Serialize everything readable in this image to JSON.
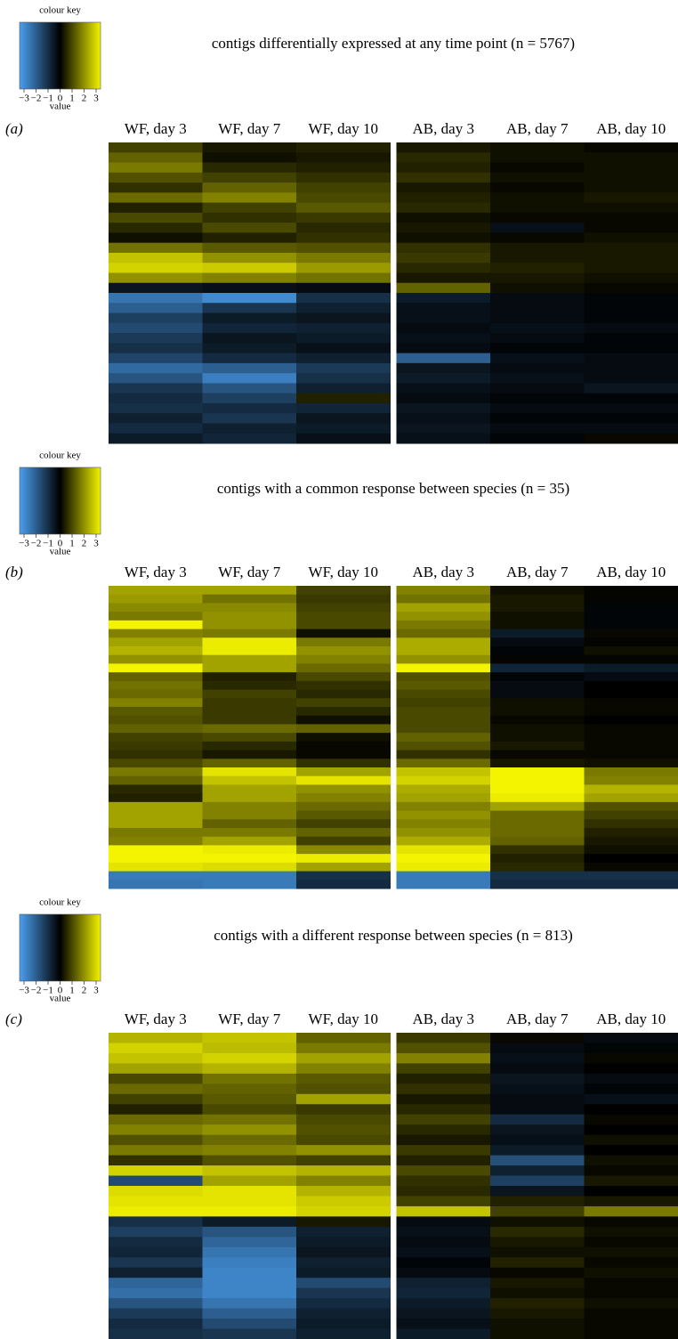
{
  "chart_data": [
    {
      "type": "heatmap",
      "title": "contigs differentially expressed at any time point (n = 5767)",
      "panel_label": "(a)",
      "colorbar_title": "colour key",
      "colorbar_label": "value",
      "zlim": [
        -3,
        3
      ],
      "zticks": [
        {
          "value": -3,
          "label": "−3"
        },
        {
          "value": -2,
          "label": "−2"
        },
        {
          "value": -1,
          "label": "−1"
        },
        0,
        1,
        2,
        3
      ],
      "colors": [
        "#4a9ff0",
        "#000000",
        "#f4f400"
      ],
      "columns": [
        "WF, day 3",
        "WF, day 7",
        "WF, day 10",
        "AB, day 3",
        "AB, day 7",
        "AB, day 10"
      ],
      "values": [
        [
          0.8,
          0.3,
          0.4,
          0.3,
          0.2,
          0.1
        ],
        [
          1.2,
          0.2,
          0.3,
          0.5,
          0.2,
          0.2
        ],
        [
          1.5,
          0.5,
          0.4,
          0.4,
          0.1,
          0.2
        ],
        [
          1.0,
          0.8,
          0.6,
          0.6,
          0.2,
          0.2
        ],
        [
          0.6,
          1.2,
          0.8,
          0.3,
          0.1,
          0.2
        ],
        [
          1.3,
          1.6,
          0.9,
          0.4,
          0.2,
          0.3
        ],
        [
          0.4,
          0.8,
          1.1,
          0.5,
          0.2,
          0.2
        ],
        [
          0.9,
          0.6,
          0.7,
          0.2,
          0.1,
          0.1
        ],
        [
          0.5,
          0.9,
          0.5,
          0.3,
          -0.3,
          0.1
        ],
        [
          0.2,
          0.4,
          0.6,
          0.2,
          0.1,
          0.2
        ],
        [
          1.4,
          1.1,
          1.0,
          0.6,
          0.3,
          0.3
        ],
        [
          2.4,
          1.8,
          1.5,
          0.7,
          0.3,
          0.3
        ],
        [
          2.6,
          2.5,
          1.9,
          0.5,
          0.4,
          0.3
        ],
        [
          1.8,
          1.6,
          1.4,
          0.3,
          0.3,
          0.2
        ],
        [
          -0.4,
          -0.3,
          -0.2,
          1.2,
          0.2,
          0.1
        ],
        [
          -2.2,
          -2.6,
          -0.9,
          -0.5,
          -0.2,
          -0.1
        ],
        [
          -1.8,
          -1.0,
          -0.6,
          -0.3,
          -0.2,
          -0.1
        ],
        [
          -1.2,
          -0.5,
          -0.4,
          -0.3,
          -0.2,
          -0.1
        ],
        [
          -1.4,
          -0.7,
          -0.6,
          -0.2,
          -0.3,
          -0.2
        ],
        [
          -1.1,
          -0.4,
          -0.5,
          -0.3,
          -0.2,
          -0.1
        ],
        [
          -0.9,
          -0.5,
          -0.3,
          -0.2,
          -0.1,
          -0.1
        ],
        [
          -1.3,
          -0.8,
          -0.6,
          -1.8,
          -0.3,
          -0.2
        ],
        [
          -2.0,
          -1.8,
          -1.1,
          -0.4,
          -0.2,
          -0.2
        ],
        [
          -1.6,
          -2.4,
          -0.9,
          -0.5,
          -0.3,
          -0.2
        ],
        [
          -1.0,
          -1.6,
          -0.6,
          -0.3,
          -0.2,
          -0.4
        ],
        [
          -0.8,
          -1.2,
          0.4,
          -0.2,
          -0.1,
          -0.1
        ],
        [
          -0.9,
          -0.8,
          -0.7,
          -0.4,
          -0.2,
          -0.2
        ],
        [
          -0.6,
          -1.0,
          -0.4,
          -0.3,
          -0.1,
          -0.1
        ],
        [
          -0.8,
          -0.6,
          -0.5,
          -0.4,
          -0.2,
          -0.2
        ],
        [
          -0.5,
          -0.7,
          -0.3,
          -0.3,
          -0.1,
          0.1
        ]
      ]
    },
    {
      "type": "heatmap",
      "title": "contigs with a common response between species (n = 35)",
      "panel_label": "(b)",
      "colorbar_title": "colour key",
      "colorbar_label": "value",
      "zlim": [
        -3,
        3
      ],
      "zticks": [
        {
          "value": -3,
          "label": "−3"
        },
        {
          "value": -2,
          "label": "−2"
        },
        {
          "value": -1,
          "label": "−1"
        },
        0,
        1,
        2,
        3
      ],
      "colors": [
        "#4a9ff0",
        "#000000",
        "#f4f400"
      ],
      "columns": [
        "WF, day 3",
        "WF, day 7",
        "WF, day 10",
        "AB, day 3",
        "AB, day 7",
        "AB, day 10"
      ],
      "values": [
        [
          2.0,
          2.0,
          0.8,
          1.6,
          0.2,
          0.05
        ],
        [
          1.9,
          1.4,
          0.7,
          1.4,
          0.3,
          0.05
        ],
        [
          1.7,
          1.7,
          0.8,
          2.0,
          0.3,
          -0.1
        ],
        [
          1.5,
          1.8,
          0.9,
          1.8,
          0.2,
          -0.1
        ],
        [
          3.0,
          1.8,
          0.9,
          1.5,
          0.2,
          -0.1
        ],
        [
          1.6,
          1.5,
          0.2,
          1.3,
          -0.5,
          0.1
        ],
        [
          2.0,
          2.9,
          1.5,
          2.1,
          -0.2,
          0.05
        ],
        [
          2.2,
          2.9,
          1.8,
          2.1,
          -0.1,
          0.2
        ],
        [
          1.8,
          2.0,
          1.6,
          1.8,
          0.05,
          0.05
        ],
        [
          3.0,
          2.0,
          1.3,
          3.0,
          -0.7,
          -0.5
        ],
        [
          1.2,
          0.4,
          0.9,
          1.0,
          -0.1,
          -0.2
        ],
        [
          1.4,
          0.5,
          0.6,
          1.1,
          -0.2,
          0.0
        ],
        [
          1.3,
          0.8,
          0.5,
          0.9,
          -0.2,
          0.0
        ],
        [
          1.6,
          0.7,
          0.8,
          0.8,
          0.2,
          0.1
        ],
        [
          1.1,
          0.7,
          0.5,
          0.9,
          0.2,
          0.1
        ],
        [
          1.0,
          0.7,
          0.2,
          0.9,
          0.1,
          0.0
        ],
        [
          1.2,
          1.3,
          1.2,
          0.9,
          0.2,
          0.1
        ],
        [
          0.8,
          0.9,
          0.2,
          1.2,
          0.2,
          0.1
        ],
        [
          0.7,
          0.5,
          0.1,
          1.0,
          0.3,
          0.1
        ],
        [
          0.6,
          0.3,
          0.1,
          0.6,
          0.1,
          0.1
        ],
        [
          0.9,
          1.2,
          0.6,
          1.3,
          0.3,
          0.2
        ],
        [
          1.5,
          2.8,
          2.0,
          2.4,
          3.0,
          1.5
        ],
        [
          1.2,
          2.4,
          2.8,
          2.6,
          3.0,
          1.6
        ],
        [
          0.5,
          2.0,
          1.8,
          2.1,
          3.0,
          2.2
        ],
        [
          0.4,
          2.0,
          1.6,
          2.0,
          2.9,
          2.0
        ],
        [
          2.0,
          1.6,
          1.3,
          1.6,
          2.0,
          1.0
        ],
        [
          2.0,
          1.6,
          1.1,
          1.8,
          1.3,
          0.8
        ],
        [
          2.0,
          1.2,
          0.8,
          1.6,
          1.3,
          0.6
        ],
        [
          1.5,
          1.5,
          1.2,
          1.8,
          1.3,
          0.4
        ],
        [
          1.6,
          2.0,
          0.8,
          2.1,
          1.2,
          0.3
        ],
        [
          3.0,
          2.9,
          1.7,
          2.8,
          0.6,
          0.2
        ],
        [
          3.0,
          3.0,
          2.9,
          3.0,
          0.4,
          0.0
        ],
        [
          2.8,
          2.7,
          2.0,
          2.9,
          0.5,
          0.1
        ],
        [
          -2.3,
          -2.3,
          -0.9,
          -2.3,
          -0.9,
          -0.9
        ],
        [
          -2.2,
          -2.3,
          -0.8,
          -2.3,
          -0.8,
          -0.8
        ]
      ]
    },
    {
      "type": "heatmap",
      "title": "contigs with a different response between species (n = 813)",
      "panel_label": "(c)",
      "colorbar_title": "colour key",
      "colorbar_label": "value",
      "zlim": [
        -3,
        3
      ],
      "zticks": [
        {
          "value": -3,
          "label": "−3"
        },
        {
          "value": -2,
          "label": "−2"
        },
        {
          "value": -1,
          "label": "−1"
        },
        0,
        1,
        2,
        3
      ],
      "colors": [
        "#4a9ff0",
        "#000000",
        "#f4f400"
      ],
      "columns": [
        "WF, day 3",
        "WF, day 7",
        "WF, day 10",
        "AB, day 3",
        "AB, day 7",
        "AB, day 10"
      ],
      "values": [
        [
          2.2,
          2.4,
          1.2,
          0.7,
          0.1,
          -0.2
        ],
        [
          2.6,
          2.3,
          1.5,
          1.0,
          -0.2,
          -0.1
        ],
        [
          2.4,
          2.6,
          2.0,
          1.6,
          -0.3,
          0.1
        ],
        [
          2.0,
          2.2,
          1.6,
          0.8,
          -0.2,
          0.0
        ],
        [
          0.9,
          1.4,
          1.1,
          0.4,
          -0.4,
          -0.2
        ],
        [
          1.3,
          1.2,
          1.0,
          0.6,
          -0.3,
          -0.1
        ],
        [
          0.8,
          1.1,
          2.0,
          0.3,
          -0.2,
          -0.3
        ],
        [
          0.4,
          0.9,
          0.7,
          0.5,
          -0.2,
          0.0
        ],
        [
          1.3,
          1.4,
          0.9,
          0.8,
          -0.8,
          0.1
        ],
        [
          1.6,
          1.8,
          1.0,
          0.5,
          -0.4,
          0.0
        ],
        [
          1.0,
          1.3,
          0.9,
          0.3,
          -0.3,
          0.2
        ],
        [
          1.5,
          1.6,
          1.8,
          0.7,
          -0.5,
          0.0
        ],
        [
          0.6,
          1.0,
          0.8,
          0.4,
          -1.5,
          0.2
        ],
        [
          2.6,
          2.4,
          2.2,
          0.9,
          -0.6,
          0.1
        ],
        [
          -1.4,
          2.0,
          1.6,
          0.6,
          -1.2,
          0.3
        ],
        [
          2.7,
          2.8,
          2.2,
          0.5,
          -0.4,
          0.0
        ],
        [
          2.8,
          2.8,
          2.5,
          0.8,
          0.4,
          0.3
        ],
        [
          2.9,
          2.9,
          2.6,
          2.4,
          0.8,
          1.5
        ],
        [
          -0.9,
          -0.5,
          0.3,
          -0.2,
          0.2,
          0.1
        ],
        [
          -1.2,
          -1.6,
          -0.6,
          -0.3,
          0.5,
          0.2
        ],
        [
          -0.8,
          -1.9,
          -0.5,
          -0.2,
          0.3,
          0.1
        ],
        [
          -0.7,
          -2.2,
          -0.4,
          -0.3,
          0.2,
          0.2
        ],
        [
          -1.0,
          -2.4,
          -0.6,
          -0.1,
          0.4,
          0.1
        ],
        [
          -0.6,
          -2.5,
          -0.5,
          -0.2,
          0.1,
          0.2
        ],
        [
          -1.9,
          -2.5,
          -1.4,
          -0.6,
          0.3,
          0.1
        ],
        [
          -2.1,
          -2.5,
          -1.0,
          -0.7,
          0.2,
          0.1
        ],
        [
          -1.6,
          -2.2,
          -0.8,
          -0.5,
          0.4,
          0.2
        ],
        [
          -1.1,
          -1.8,
          -0.6,
          -0.4,
          0.3,
          0.1
        ],
        [
          -0.8,
          -1.4,
          -0.5,
          -0.3,
          0.2,
          0.1
        ],
        [
          -0.9,
          -1.0,
          -0.6,
          -0.5,
          0.2,
          0.1
        ]
      ]
    }
  ]
}
